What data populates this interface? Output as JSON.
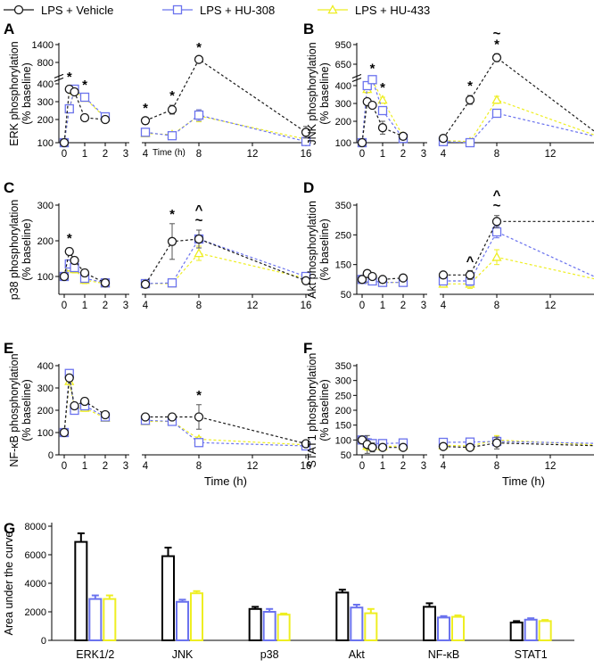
{
  "legend": {
    "entries": [
      {
        "label": "LPS + Vehicle",
        "color": "#1a1a1a",
        "marker": "circle"
      },
      {
        "label": "LPS + HU-308",
        "color": "#6b73ee",
        "marker": "square"
      },
      {
        "label": "LPS + HU-433",
        "color": "#eeee22",
        "marker": "triangle"
      }
    ]
  },
  "colors": {
    "vehicle": "#1a1a1a",
    "hu308": "#6b73ee",
    "hu433": "#eeee22",
    "axis": "#000000"
  },
  "time_axis_label": "Time (h)",
  "chart_data": [
    {
      "type": "line",
      "panel": "A",
      "ylabel": "ERK phosphorylation (% baseline)",
      "yticks": [
        "100",
        "200",
        "300",
        "400",
        "800",
        "1400"
      ],
      "xticks_left": [
        "0",
        "1",
        "2",
        "3"
      ],
      "xticks_right": [
        "4",
        "8",
        "12",
        "16"
      ],
      "time_label": "Time (h)",
      "series": [
        {
          "name": "LPS + Vehicle",
          "x": [
            0,
            0.25,
            0.5,
            1,
            2,
            4,
            6,
            8,
            16
          ],
          "y": [
            100,
            370,
            355,
            210,
            200,
            195,
            255,
            900,
            145
          ],
          "err": [
            0,
            15,
            15,
            10,
            10,
            15,
            25,
            80,
            25
          ]
        },
        {
          "name": "LPS + HU-308",
          "x": [
            0,
            0.25,
            0.5,
            1,
            2,
            4,
            6,
            8,
            16
          ],
          "y": [
            100,
            260,
            370,
            325,
            215,
            145,
            130,
            225,
            105
          ],
          "err": [
            0,
            20,
            20,
            15,
            10,
            10,
            10,
            30,
            15
          ]
        },
        {
          "name": "LPS + HU-433",
          "x": [
            0,
            0.25,
            0.5,
            1,
            2,
            4,
            6,
            8,
            16
          ],
          "y": [
            100,
            260,
            360,
            320,
            210,
            140,
            135,
            220,
            115
          ],
          "err": [
            0,
            20,
            20,
            15,
            10,
            10,
            10,
            30,
            15
          ]
        }
      ],
      "annotations": [
        {
          "x": 0.25,
          "text": "*"
        },
        {
          "x": 1,
          "text": "*"
        },
        {
          "x": 4,
          "text": "*"
        },
        {
          "x": 6,
          "text": "*"
        },
        {
          "x": 8,
          "text": "*"
        }
      ]
    },
    {
      "type": "line",
      "panel": "B",
      "ylabel": "JNK phosphorylation (% baseline)",
      "yticks": [
        "100",
        "200",
        "300",
        "400",
        "650",
        "950"
      ],
      "xticks_left": [
        "0",
        "1",
        "2",
        "3"
      ],
      "xticks_right": [
        "4",
        "8",
        "12",
        "16"
      ],
      "time_label": "",
      "series": [
        {
          "name": "LPS + Vehicle",
          "x": [
            0,
            0.25,
            0.5,
            1,
            2,
            4,
            6,
            8,
            16
          ],
          "y": [
            100,
            310,
            290,
            170,
            130,
            120,
            320,
            750,
            120
          ],
          "err": [
            0,
            15,
            15,
            30,
            10,
            10,
            25,
            60,
            10
          ]
        },
        {
          "name": "LPS + HU-308",
          "x": [
            0,
            0.25,
            0.5,
            1,
            2,
            4,
            6,
            8,
            16
          ],
          "y": [
            100,
            400,
            470,
            260,
            120,
            105,
            100,
            245,
            120
          ],
          "err": [
            0,
            20,
            20,
            15,
            10,
            10,
            10,
            20,
            10
          ]
        },
        {
          "name": "LPS + HU-433",
          "x": [
            0,
            0.25,
            0.5,
            1,
            2,
            4,
            6,
            8,
            16
          ],
          "y": [
            100,
            380,
            460,
            320,
            130,
            110,
            105,
            320,
            120
          ],
          "err": [
            0,
            20,
            20,
            15,
            10,
            10,
            10,
            20,
            10
          ]
        }
      ],
      "annotations": [
        {
          "x": 0.5,
          "text": "*"
        },
        {
          "x": 1,
          "text": "*"
        },
        {
          "x": 6,
          "text": "*"
        },
        {
          "x": 8,
          "text": "*"
        },
        {
          "x": 8,
          "text": "~"
        }
      ]
    },
    {
      "type": "line",
      "panel": "C",
      "ylabel": "p38 phosphorylation (% baseline)",
      "yticks": [
        "100",
        "200",
        "300"
      ],
      "ylim": [
        50,
        300
      ],
      "xticks_left": [
        "0",
        "1",
        "2",
        "3"
      ],
      "xticks_right": [
        "4",
        "8",
        "12",
        "16"
      ],
      "time_label": "",
      "series": [
        {
          "name": "LPS + Vehicle",
          "x": [
            0,
            0.25,
            0.5,
            1,
            2,
            4,
            6,
            8,
            16
          ],
          "y": [
            100,
            170,
            145,
            110,
            82,
            78,
            198,
            205,
            88
          ],
          "err": [
            0,
            10,
            10,
            10,
            5,
            5,
            50,
            25,
            8
          ]
        },
        {
          "name": "LPS + HU-308",
          "x": [
            0,
            0.25,
            0.5,
            1,
            2,
            4,
            6,
            8,
            16
          ],
          "y": [
            100,
            135,
            125,
            95,
            82,
            80,
            82,
            205,
            100
          ],
          "err": [
            0,
            10,
            10,
            10,
            5,
            5,
            5,
            25,
            8
          ]
        },
        {
          "name": "LPS + HU-433",
          "x": [
            0,
            0.25,
            0.5,
            1,
            2,
            4,
            6,
            8,
            16
          ],
          "y": [
            100,
            125,
            120,
            90,
            80,
            80,
            80,
            165,
            95
          ],
          "err": [
            0,
            10,
            10,
            10,
            5,
            5,
            5,
            20,
            8
          ]
        }
      ],
      "annotations": [
        {
          "x": 0.25,
          "text": "*"
        },
        {
          "x": 6,
          "text": "*"
        },
        {
          "x": 8,
          "text": "~"
        },
        {
          "x": 8,
          "text": "^"
        }
      ]
    },
    {
      "type": "line",
      "panel": "D",
      "ylabel": "Akt phosphorylation (% baseline)",
      "yticks": [
        "50",
        "150",
        "250",
        "350"
      ],
      "ylim": [
        50,
        350
      ],
      "xticks_left": [
        "0",
        "1",
        "2",
        "3"
      ],
      "xticks_right": [
        "4",
        "8",
        "12",
        "16"
      ],
      "time_label": "",
      "series": [
        {
          "name": "LPS + Vehicle",
          "x": [
            0,
            0.25,
            0.5,
            1,
            2,
            4,
            6,
            8,
            16
          ],
          "y": [
            100,
            120,
            110,
            100,
            105,
            115,
            115,
            295,
            295
          ],
          "err": [
            0,
            10,
            10,
            10,
            10,
            10,
            15,
            20,
            35
          ]
        },
        {
          "name": "LPS + HU-308",
          "x": [
            0,
            0.25,
            0.5,
            1,
            2,
            4,
            6,
            8,
            16
          ],
          "y": [
            100,
            105,
            95,
            90,
            90,
            95,
            95,
            260,
            95
          ],
          "err": [
            0,
            10,
            10,
            10,
            10,
            10,
            15,
            20,
            10
          ]
        },
        {
          "name": "LPS + HU-433",
          "x": [
            0,
            0.25,
            0.5,
            1,
            2,
            4,
            6,
            8,
            16
          ],
          "y": [
            100,
            100,
            95,
            90,
            90,
            85,
            85,
            175,
            95
          ],
          "err": [
            0,
            10,
            10,
            10,
            10,
            10,
            15,
            25,
            10
          ]
        }
      ],
      "annotations": [
        {
          "x": 6,
          "text": "^"
        },
        {
          "x": 8,
          "text": "~"
        },
        {
          "x": 8,
          "text": "^"
        },
        {
          "x": 16,
          "text": "*"
        }
      ]
    },
    {
      "type": "line",
      "panel": "E",
      "ylabel": "NF-κB phosphorylation (% baseline)",
      "yticks": [
        "0",
        "100",
        "200",
        "300",
        "400"
      ],
      "ylim": [
        0,
        400
      ],
      "xticks_left": [
        "0",
        "1",
        "2",
        "3"
      ],
      "xticks_right": [
        "4",
        "8",
        "12",
        "16"
      ],
      "time_label": "Time (h)",
      "series": [
        {
          "name": "LPS + Vehicle",
          "x": [
            0,
            0.25,
            0.5,
            1,
            2,
            4,
            6,
            8,
            16
          ],
          "y": [
            100,
            345,
            220,
            240,
            180,
            170,
            170,
            170,
            50
          ],
          "err": [
            0,
            15,
            15,
            15,
            10,
            10,
            10,
            55,
            10
          ]
        },
        {
          "name": "LPS + HU-308",
          "x": [
            0,
            0.25,
            0.5,
            1,
            2,
            4,
            6,
            8,
            16
          ],
          "y": [
            100,
            365,
            200,
            220,
            170,
            155,
            150,
            55,
            40
          ],
          "err": [
            0,
            15,
            15,
            15,
            10,
            10,
            10,
            10,
            10
          ]
        },
        {
          "name": "LPS + HU-433",
          "x": [
            0,
            0.25,
            0.5,
            1,
            2,
            4,
            6,
            8,
            16
          ],
          "y": [
            100,
            330,
            210,
            210,
            165,
            150,
            150,
            70,
            45
          ],
          "err": [
            0,
            15,
            15,
            15,
            10,
            10,
            10,
            10,
            10
          ]
        }
      ],
      "annotations": [
        {
          "x": 8,
          "text": "*"
        }
      ]
    },
    {
      "type": "line",
      "panel": "F",
      "ylabel": "STAT1 phosphorylation (% baseline)",
      "yticks": [
        "50",
        "100",
        "150",
        "200",
        "250",
        "300",
        "350"
      ],
      "ylim": [
        50,
        350
      ],
      "xticks_left": [
        "0",
        "1",
        "2",
        "3"
      ],
      "xticks_right": [
        "4",
        "8",
        "12",
        "16"
      ],
      "time_label": "Time (h)",
      "series": [
        {
          "name": "LPS + Vehicle",
          "x": [
            0,
            0.25,
            0.5,
            1,
            2,
            4,
            6,
            8,
            16
          ],
          "y": [
            100,
            85,
            75,
            75,
            75,
            78,
            75,
            90,
            80
          ],
          "err": [
            0,
            30,
            15,
            10,
            10,
            10,
            10,
            20,
            8
          ]
        },
        {
          "name": "LPS + HU-308",
          "x": [
            0,
            0.25,
            0.5,
            1,
            2,
            4,
            6,
            8,
            16
          ],
          "y": [
            100,
            90,
            88,
            88,
            90,
            92,
            93,
            95,
            88
          ],
          "err": [
            0,
            15,
            10,
            10,
            10,
            10,
            10,
            10,
            8
          ]
        },
        {
          "name": "LPS + HU-433",
          "x": [
            0,
            0.25,
            0.5,
            1,
            2,
            4,
            6,
            8,
            16
          ],
          "y": [
            100,
            80,
            80,
            78,
            80,
            82,
            80,
            100,
            82
          ],
          "err": [
            0,
            15,
            10,
            10,
            10,
            10,
            10,
            15,
            8
          ]
        }
      ],
      "annotations": []
    },
    {
      "type": "bar",
      "panel": "G",
      "ylabel": "Area under the curve",
      "yticks": [
        "0",
        "2000",
        "4000",
        "6000",
        "8000"
      ],
      "ylim": [
        0,
        8000
      ],
      "categories": [
        "ERK1/2",
        "JNK",
        "p38",
        "Akt",
        "NF-κB",
        "STAT1"
      ],
      "series": [
        {
          "name": "LPS + Vehicle",
          "values": [
            6900,
            5900,
            2200,
            3350,
            2350,
            1250
          ],
          "err": [
            600,
            600,
            150,
            200,
            250,
            100
          ]
        },
        {
          "name": "LPS + HU-308",
          "values": [
            2900,
            2700,
            2000,
            2300,
            1600,
            1450
          ],
          "err": [
            250,
            150,
            200,
            200,
            100,
            100
          ]
        },
        {
          "name": "LPS + HU-433",
          "values": [
            2900,
            3300,
            1800,
            1900,
            1650,
            1350
          ],
          "err": [
            250,
            150,
            80,
            300,
            100,
            80
          ]
        }
      ]
    }
  ]
}
